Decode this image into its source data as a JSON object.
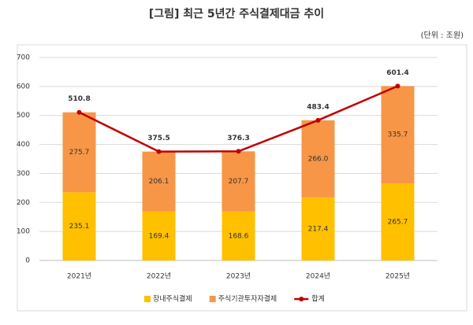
{
  "chart_data": {
    "type": "bar",
    "stacked": true,
    "title": "[그림] 최근 5년간 주식결제대금 추이",
    "subtitle": "(단위 : 조원)",
    "categories": [
      "2021년",
      "2022년",
      "2023년",
      "2024년",
      "2025년"
    ],
    "series": [
      {
        "name": "장내주식결제",
        "color": "#ffc000",
        "values": [
          235.1,
          169.4,
          168.6,
          217.4,
          265.7
        ]
      },
      {
        "name": "주식기관투자자결제",
        "color": "#f79646",
        "values": [
          275.7,
          206.1,
          207.7,
          266.0,
          335.7
        ],
        "value_labels": [
          "275.7",
          "206.1",
          "207.7",
          "266.0",
          "335.7"
        ]
      },
      {
        "name": "합계",
        "color": "#c00000",
        "type": "line",
        "values": [
          510.8,
          375.5,
          376.3,
          483.4,
          601.4
        ]
      }
    ],
    "ylim": [
      0,
      700
    ],
    "yticks": [
      0,
      100,
      200,
      300,
      400,
      500,
      600,
      700
    ],
    "grid": true,
    "legend": "bottom"
  }
}
